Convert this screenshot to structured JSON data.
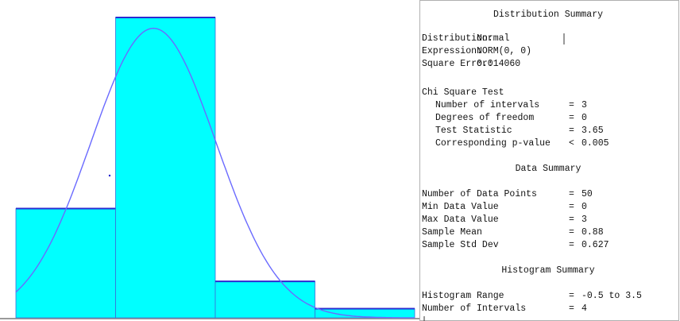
{
  "chart_data": {
    "type": "histogram",
    "bins": [
      -0.5,
      0.5,
      1.5,
      2.5,
      3.5
    ],
    "counts": [
      12,
      33,
      4,
      1
    ],
    "color": "#00ffff",
    "edge_color": "#2b2bd0",
    "curve_color": "#6a6aff"
  },
  "distribution_summary": {
    "title": "Distribution Summary",
    "rows": [
      {
        "label": "Distribution:",
        "value": "Normal"
      },
      {
        "label": "Expression:",
        "value": "NORM(0, 0)"
      },
      {
        "label": "Square Error:",
        "value": "0.014060"
      }
    ]
  },
  "chi_square_test": {
    "title": "Chi Square Test",
    "rows": [
      {
        "label": "Number of intervals",
        "relation": "=",
        "value": 3
      },
      {
        "label": "Degrees of freedom",
        "relation": "=",
        "value": 0
      },
      {
        "label": "Test Statistic",
        "relation": "=",
        "value": 3.65
      },
      {
        "label": "Corresponding p-value",
        "relation": "<",
        "value": 0.005
      }
    ]
  },
  "data_summary": {
    "title": "Data Summary",
    "rows": [
      {
        "label": "Number of Data Points",
        "relation": "=",
        "value": 50
      },
      {
        "label": "Min Data Value",
        "relation": "=",
        "value": 0
      },
      {
        "label": "Max Data Value",
        "relation": "=",
        "value": 3
      },
      {
        "label": "Sample Mean",
        "relation": "=",
        "value": 0.88
      },
      {
        "label": "Sample Std Dev",
        "relation": "=",
        "value": 0.627
      }
    ]
  },
  "histogram_summary": {
    "title": "Histogram Summary",
    "rows": [
      {
        "label": "Histogram Range",
        "relation": "=",
        "value": "-0.5 to 3.5"
      },
      {
        "label": "Number of Intervals",
        "relation": "=",
        "value": 4
      }
    ]
  }
}
